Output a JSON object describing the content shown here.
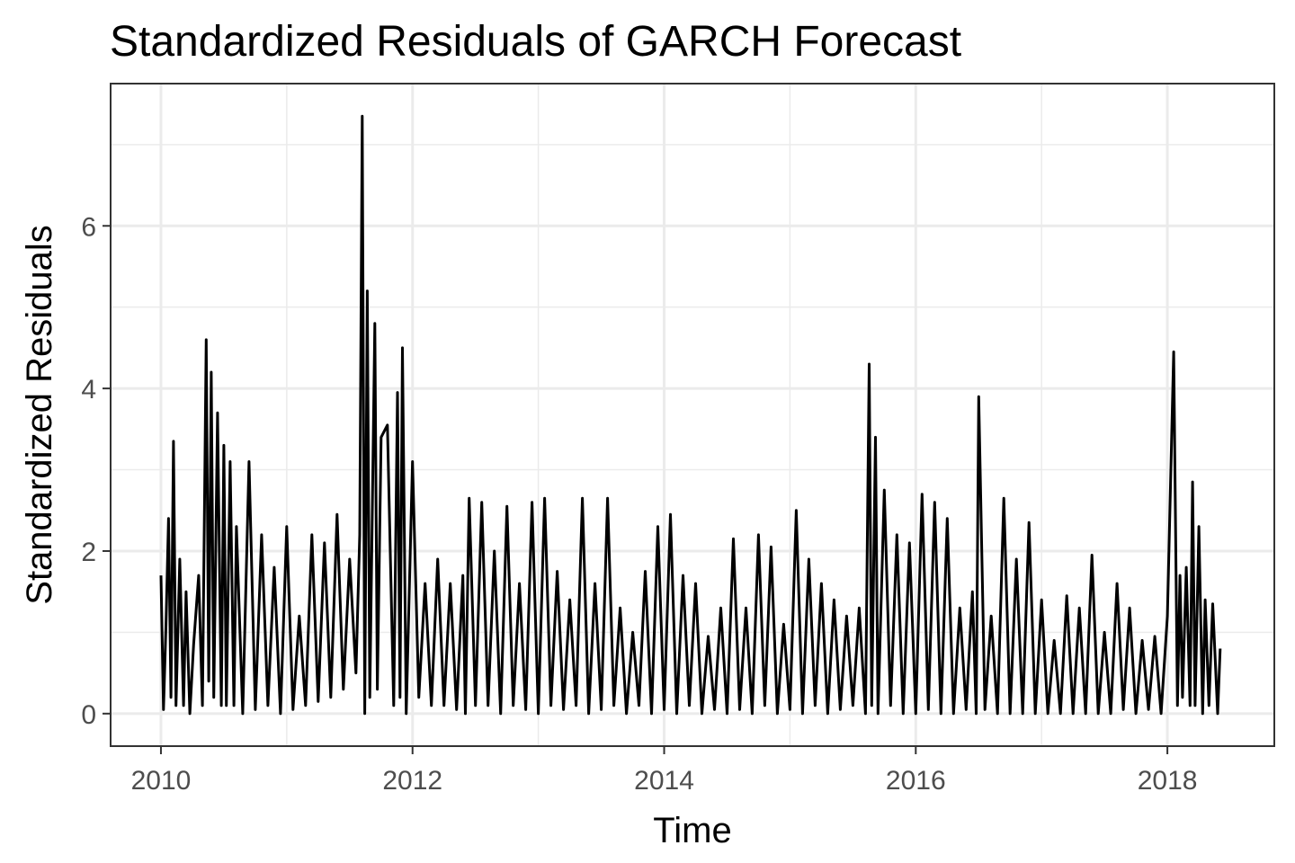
{
  "chart_data": {
    "type": "line",
    "title": "Standardized Residuals of GARCH Forecast",
    "xlabel": "Time",
    "ylabel": "Standardized Residuals",
    "xlim": [
      2009.6,
      2018.85
    ],
    "ylim": [
      -0.4,
      7.75
    ],
    "x_ticks": [
      2010,
      2012,
      2014,
      2016,
      2018
    ],
    "y_ticks": [
      0,
      2,
      4,
      6
    ],
    "grid": true,
    "legend": "none",
    "line_color": "#000000",
    "series": [
      {
        "x": [
          2010.0,
          2010.02,
          2010.04,
          2010.06,
          2010.08,
          2010.1,
          2010.12,
          2010.15,
          2010.18,
          2010.2,
          2010.23,
          2010.26,
          2010.3,
          2010.33,
          2010.36,
          2010.38,
          2010.4,
          2010.42,
          2010.45,
          2010.48,
          2010.5,
          2010.52,
          2010.55,
          2010.58,
          2010.6,
          2010.65,
          2010.7,
          2010.75,
          2010.8,
          2010.85,
          2010.9,
          2010.95,
          2011.0,
          2011.05,
          2011.1,
          2011.15,
          2011.2,
          2011.25,
          2011.3,
          2011.35,
          2011.4,
          2011.45,
          2011.5,
          2011.55,
          2011.58,
          2011.6,
          2011.62,
          2011.64,
          2011.66,
          2011.7,
          2011.72,
          2011.75,
          2011.8,
          2011.85,
          2011.88,
          2011.9,
          2011.92,
          2011.95,
          2012.0,
          2012.05,
          2012.1,
          2012.15,
          2012.2,
          2012.25,
          2012.3,
          2012.35,
          2012.4,
          2012.42,
          2012.45,
          2012.5,
          2012.55,
          2012.6,
          2012.65,
          2012.7,
          2012.75,
          2012.8,
          2012.85,
          2012.9,
          2012.95,
          2013.0,
          2013.05,
          2013.1,
          2013.15,
          2013.2,
          2013.25,
          2013.3,
          2013.35,
          2013.4,
          2013.45,
          2013.5,
          2013.55,
          2013.6,
          2013.65,
          2013.7,
          2013.75,
          2013.8,
          2013.85,
          2013.9,
          2013.95,
          2014.0,
          2014.05,
          2014.1,
          2014.15,
          2014.2,
          2014.25,
          2014.3,
          2014.35,
          2014.4,
          2014.45,
          2014.5,
          2014.55,
          2014.6,
          2014.65,
          2014.7,
          2014.75,
          2014.8,
          2014.85,
          2014.9,
          2014.95,
          2015.0,
          2015.05,
          2015.1,
          2015.15,
          2015.2,
          2015.25,
          2015.3,
          2015.35,
          2015.4,
          2015.45,
          2015.5,
          2015.55,
          2015.6,
          2015.63,
          2015.65,
          2015.68,
          2015.7,
          2015.75,
          2015.8,
          2015.85,
          2015.9,
          2015.95,
          2016.0,
          2016.05,
          2016.1,
          2016.15,
          2016.2,
          2016.25,
          2016.3,
          2016.35,
          2016.4,
          2016.45,
          2016.48,
          2016.5,
          2016.55,
          2016.6,
          2016.65,
          2016.7,
          2016.75,
          2016.8,
          2016.85,
          2016.9,
          2016.95,
          2017.0,
          2017.05,
          2017.1,
          2017.15,
          2017.2,
          2017.25,
          2017.3,
          2017.35,
          2017.4,
          2017.45,
          2017.5,
          2017.55,
          2017.6,
          2017.65,
          2017.7,
          2017.75,
          2017.8,
          2017.85,
          2017.9,
          2017.95,
          2018.0,
          2018.05,
          2018.08,
          2018.1,
          2018.12,
          2018.15,
          2018.18,
          2018.2,
          2018.22,
          2018.25,
          2018.28,
          2018.3,
          2018.33,
          2018.36,
          2018.4,
          2018.42
        ],
        "y": [
          1.7,
          0.05,
          1.1,
          2.4,
          0.2,
          3.35,
          0.1,
          1.9,
          0.1,
          1.5,
          0.0,
          0.85,
          1.7,
          0.1,
          4.6,
          0.4,
          4.2,
          0.2,
          3.7,
          0.1,
          3.3,
          0.1,
          3.1,
          0.1,
          2.3,
          0.0,
          3.1,
          0.05,
          2.2,
          0.1,
          1.8,
          0.0,
          2.3,
          0.05,
          1.2,
          0.1,
          2.2,
          0.15,
          2.1,
          0.2,
          2.45,
          0.3,
          1.9,
          0.5,
          2.2,
          7.35,
          0.0,
          5.2,
          0.2,
          4.8,
          0.3,
          3.4,
          3.55,
          0.1,
          3.95,
          0.2,
          4.5,
          0.0,
          3.1,
          0.2,
          1.6,
          0.1,
          1.9,
          0.1,
          1.6,
          0.05,
          1.7,
          0.0,
          2.65,
          0.1,
          2.6,
          0.1,
          2.0,
          0.0,
          2.55,
          0.1,
          1.6,
          0.05,
          2.6,
          0.0,
          2.65,
          0.1,
          1.75,
          0.05,
          1.4,
          0.1,
          2.65,
          0.0,
          1.6,
          0.05,
          2.65,
          0.1,
          1.3,
          0.0,
          1.0,
          0.1,
          1.75,
          0.0,
          2.3,
          0.05,
          2.45,
          0.0,
          1.7,
          0.1,
          1.6,
          0.0,
          0.95,
          0.05,
          1.3,
          0.0,
          2.15,
          0.05,
          1.3,
          0.0,
          2.2,
          0.1,
          2.05,
          0.0,
          1.1,
          0.05,
          2.5,
          0.0,
          1.9,
          0.1,
          1.6,
          0.0,
          1.4,
          0.05,
          1.2,
          0.1,
          1.3,
          0.0,
          4.3,
          0.1,
          3.4,
          0.0,
          2.75,
          0.1,
          2.2,
          0.0,
          2.1,
          0.0,
          2.7,
          0.05,
          2.6,
          0.0,
          2.4,
          0.0,
          1.3,
          0.05,
          1.5,
          0.0,
          3.9,
          0.05,
          1.2,
          0.0,
          2.65,
          0.0,
          1.9,
          0.0,
          2.35,
          0.0,
          1.4,
          0.0,
          0.9,
          0.0,
          1.45,
          0.0,
          1.3,
          0.0,
          1.95,
          0.0,
          1.0,
          0.0,
          1.6,
          0.05,
          1.3,
          0.0,
          0.9,
          0.05,
          0.95,
          0.0,
          1.2,
          4.45,
          0.1,
          1.7,
          0.2,
          1.8,
          0.1,
          2.85,
          0.1,
          2.3,
          0.0,
          1.4,
          0.1,
          1.35,
          0.0,
          0.8
        ]
      }
    ]
  }
}
